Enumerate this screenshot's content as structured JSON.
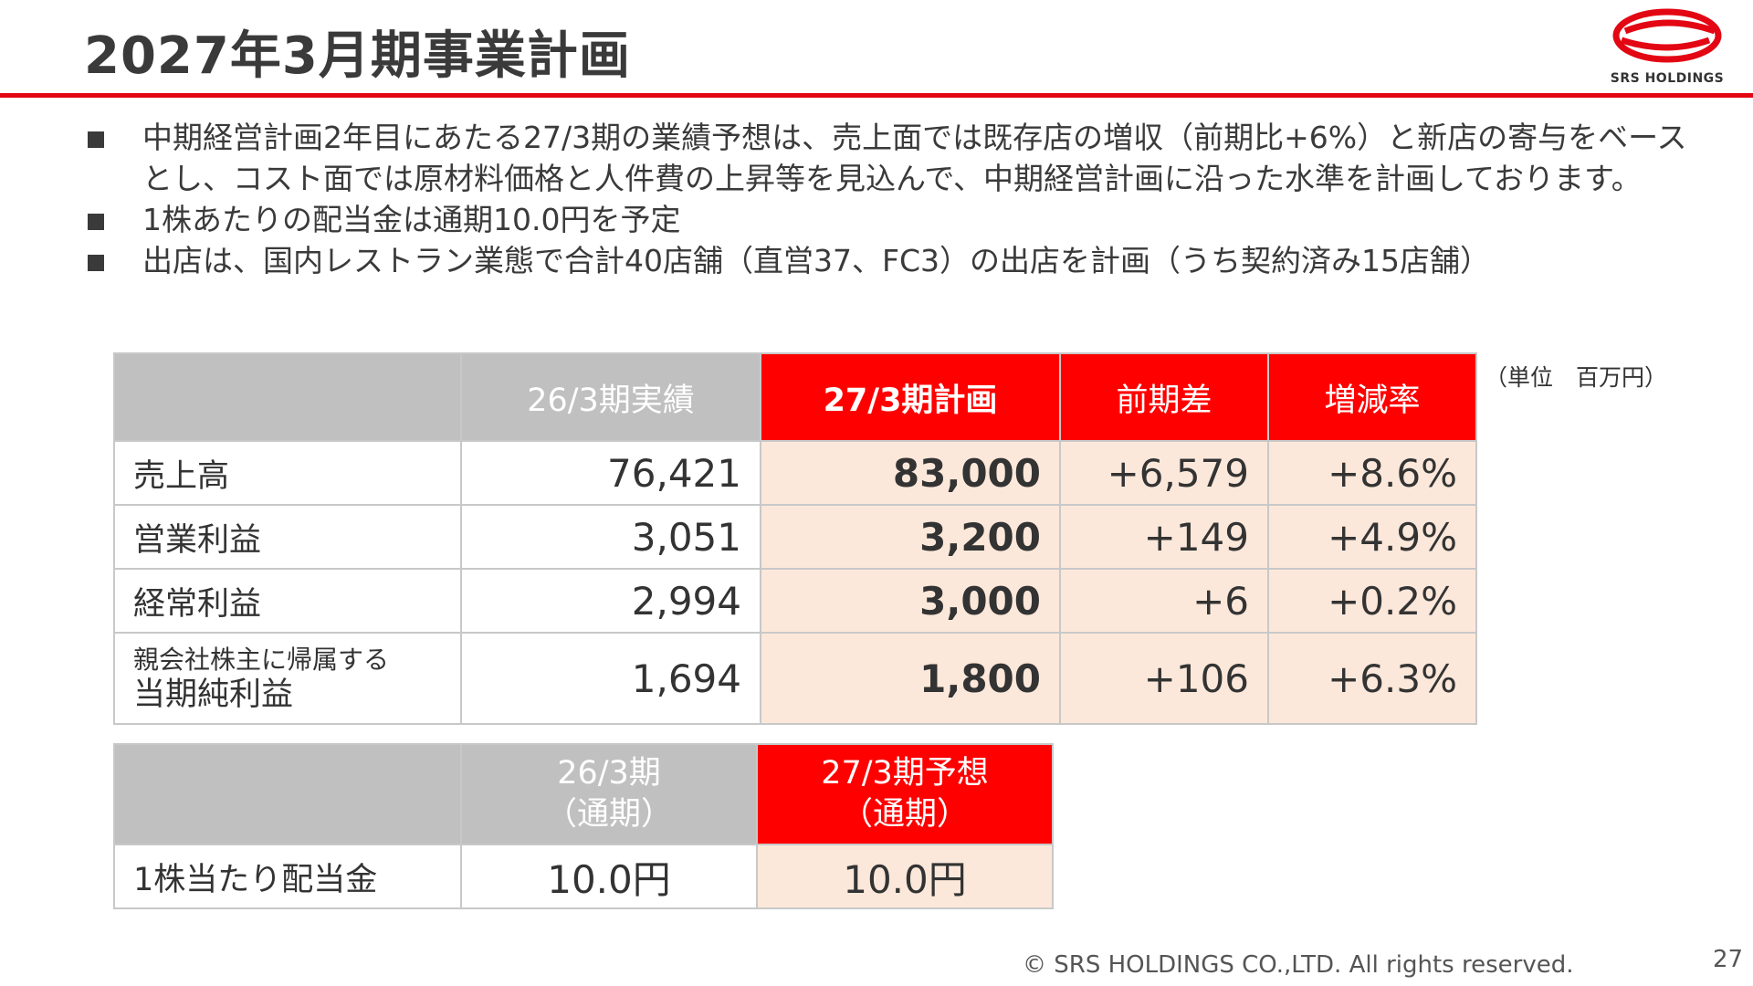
{
  "title": "2027年3月期事業計画",
  "logo": {
    "text": "SRS HOLDINGS",
    "color": "#e30613"
  },
  "bullets": [
    "中期経営計画2年目にあたる27/3期の業績予想は、売上面では既存店の増収（前期比+6%）と新店の寄与をベースとし、コスト面では原材料価格と人件費の上昇等を見込んで、中期経営計画に沿った水準を計画しております。",
    "1株あたりの配当金は通期10.0円を予定",
    "出店は、国内レストラン業態で合計40店舗（直営37、FC3）の出店を計画（うち契約済み15店舗）"
  ],
  "unit_note": "（単位　百万円）",
  "table1": {
    "headers": [
      "",
      "26/3期実績",
      "27/3期計画",
      "前期差",
      "増減率"
    ],
    "rows": [
      {
        "label": "売上高",
        "actual": "76,421",
        "plan": "83,000",
        "diff": "+6,579",
        "rate": "+8.6%"
      },
      {
        "label": "営業利益",
        "actual": "3,051",
        "plan": "3,200",
        "diff": "+149",
        "rate": "+4.9%"
      },
      {
        "label": "経常利益",
        "actual": "2,994",
        "plan": "3,000",
        "diff": "+6",
        "rate": "+0.2%"
      },
      {
        "label_small": "親会社株主に帰属する",
        "label": "当期純利益",
        "actual": "1,694",
        "plan": "1,800",
        "diff": "+106",
        "rate": "+6.3%"
      }
    ]
  },
  "table2": {
    "headers": [
      {
        "line1": "",
        "line2": ""
      },
      {
        "line1": "26/3期",
        "line2": "（通期）"
      },
      {
        "line1": "27/3期予想",
        "line2": "（通期）"
      }
    ],
    "rows": [
      {
        "label": "1株当たり配当金",
        "prev": "10.0円",
        "forecast": "10.0円"
      }
    ]
  },
  "colors": {
    "accent_red": "#ff0000",
    "header_gray": "#c0c0c0",
    "highlight_pink": "#fce8da"
  },
  "footer": "© SRS HOLDINGS CO.,LTD. All rights reserved.",
  "page_number": "27"
}
